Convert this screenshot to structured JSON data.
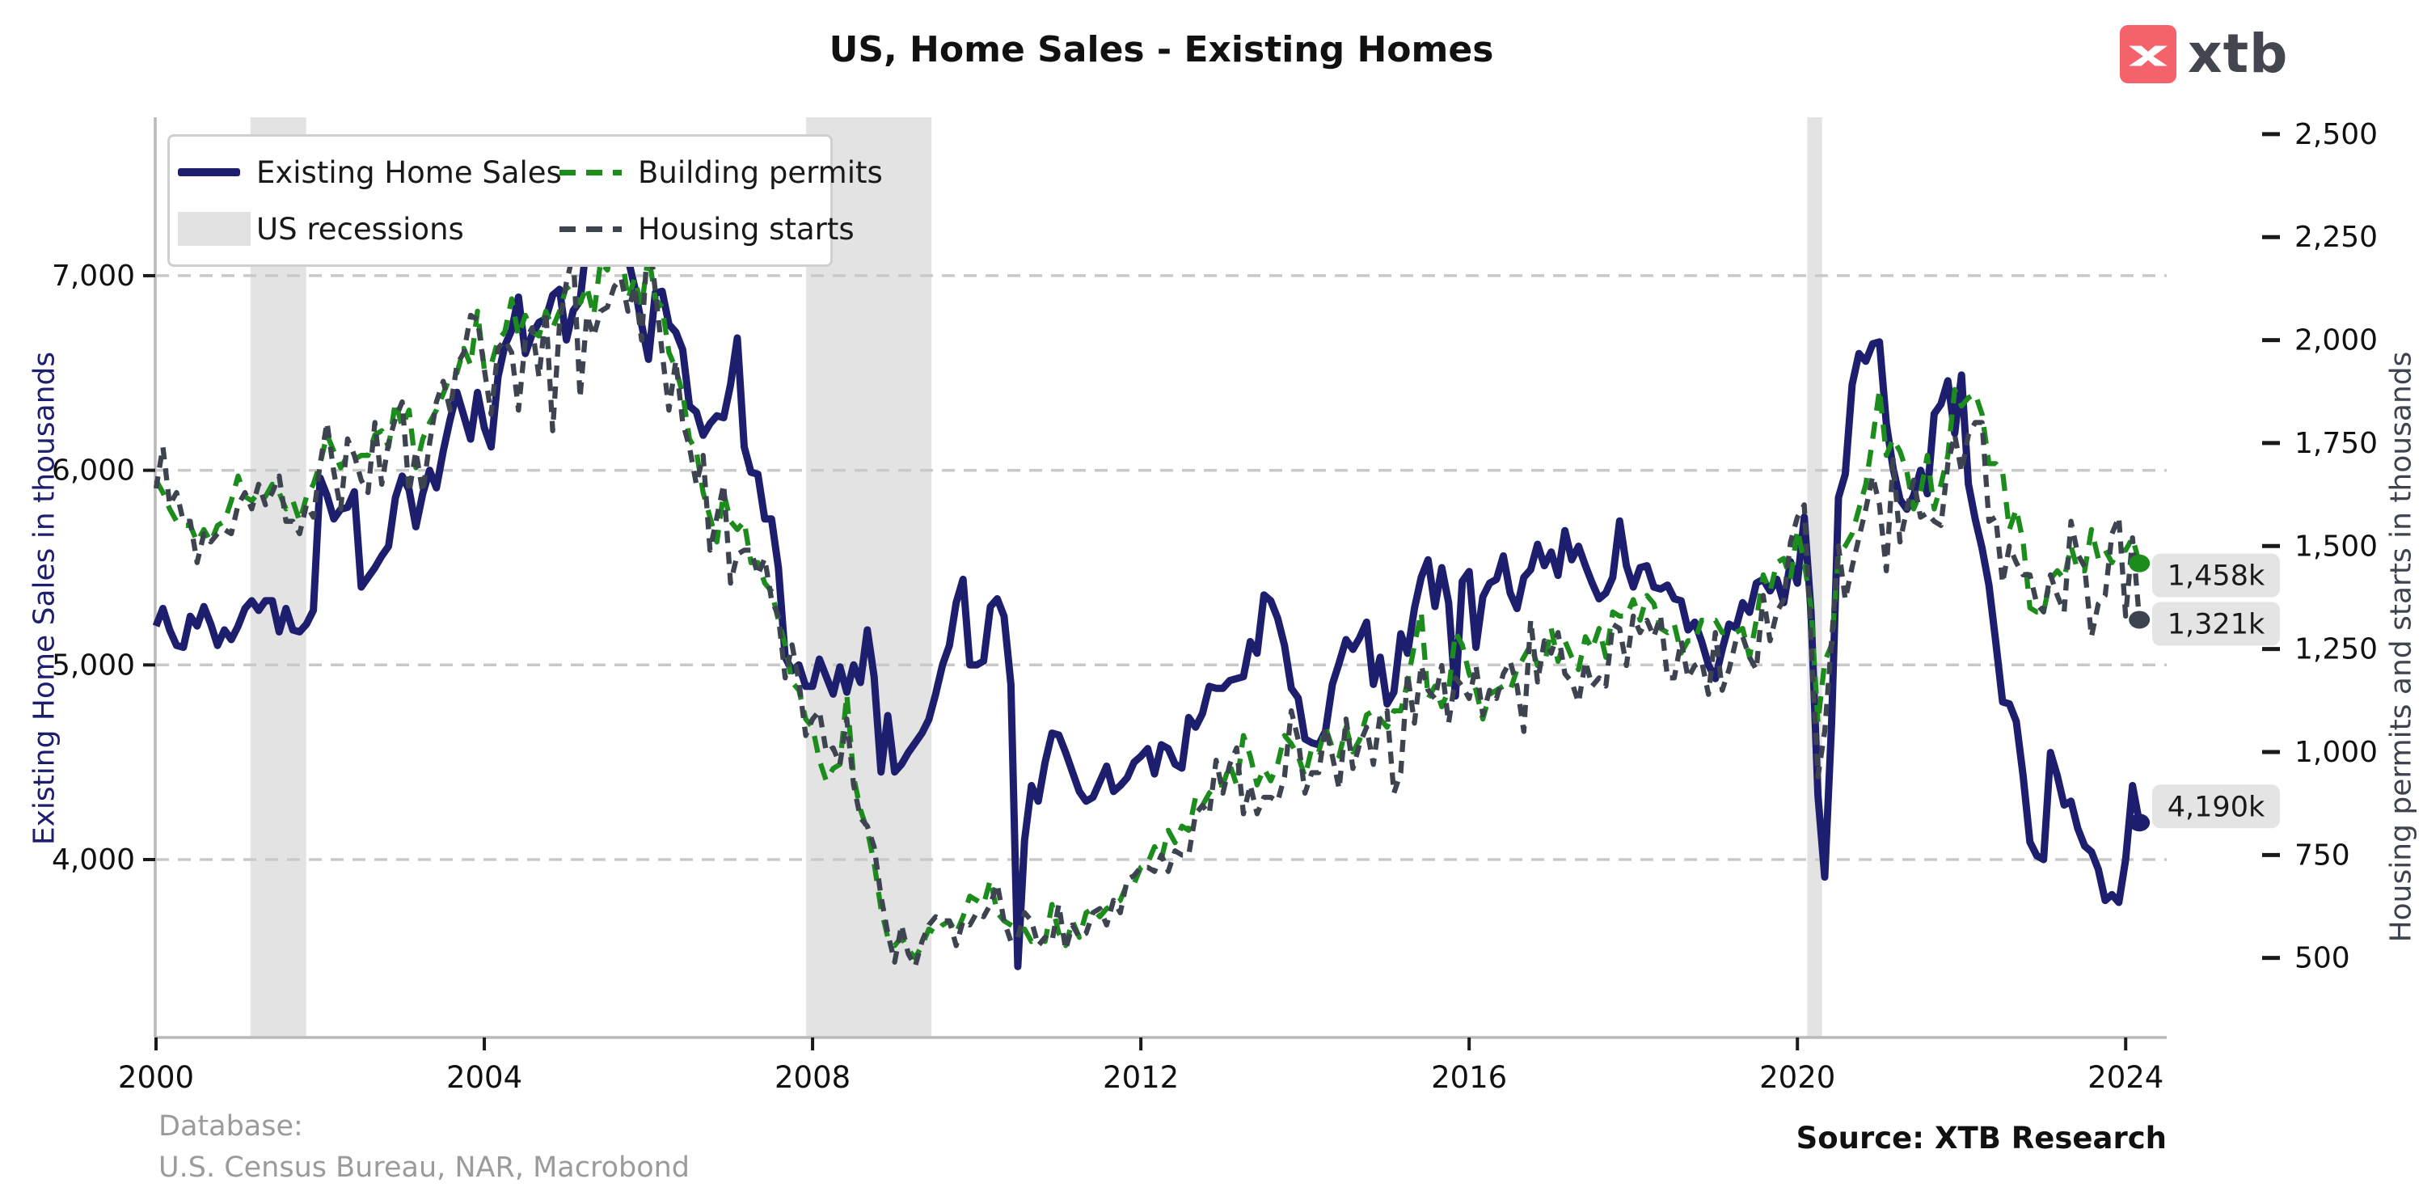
{
  "title": "US, Home Sales - Existing Homes",
  "logo": {
    "text": "xtb",
    "box_color": "#f4626b",
    "text_color": "#43454f"
  },
  "legend": {
    "items": [
      {
        "label": "Existing Home Sales",
        "swatch": "line",
        "color": "#1e1e6e"
      },
      {
        "label": "US recessions",
        "swatch": "patch",
        "color": "#e2e2e2"
      },
      {
        "label": "Building permits",
        "swatch": "dashed",
        "color": "#1c8c1c"
      },
      {
        "label": "Housing starts",
        "swatch": "dashed",
        "color": "#3d4450"
      }
    ]
  },
  "axes": {
    "left": {
      "title": "Existing Home Sales in thousands",
      "color": "#1e1e6e",
      "tick_labels": [
        "4,000",
        "5,000",
        "6,000",
        "7,000"
      ],
      "tick_values": [
        4000,
        5000,
        6000,
        7000
      ]
    },
    "right": {
      "title": "Housing permits and starts in thousands",
      "color": "#3d4450",
      "tick_labels": [
        "500",
        "750",
        "1,000",
        "1,250",
        "1,500",
        "1,750",
        "2,000",
        "2,250",
        "2,500"
      ],
      "tick_values": [
        500,
        750,
        1000,
        1250,
        1500,
        1750,
        2000,
        2250,
        2500
      ]
    },
    "x": {
      "tick_labels": [
        "2000",
        "2004",
        "2008",
        "2012",
        "2016",
        "2020",
        "2024"
      ],
      "tick_values": [
        2000,
        2004,
        2008,
        2012,
        2016,
        2020,
        2024
      ]
    }
  },
  "end_labels": [
    {
      "text": "1,458k",
      "series": 1,
      "dy": 15
    },
    {
      "text": "1,321k",
      "series": 2,
      "dy": 5
    },
    {
      "text": "4,190k",
      "series": 0,
      "dy": -20
    }
  ],
  "footer": {
    "database_label": "Database:",
    "database_value": "U.S. Census Bureau, NAR, Macrobond",
    "source": "Source: XTB Research"
  },
  "chart_data": {
    "type": "line",
    "title": "US, Home Sales - Existing Homes",
    "x_start_year": 2000,
    "x_step_months": 1,
    "x_range": [
      2000,
      2024.5
    ],
    "left_ylim": [
      3086,
      7814
    ],
    "right_ylim": [
      307,
      2541
    ],
    "grid": "horizontal dashed at left-axis ticks",
    "legend_position": "upper left",
    "recession_color": "#e3e3e3",
    "recessions": [
      [
        2001.15,
        2001.83
      ],
      [
        2007.92,
        2009.45
      ],
      [
        2020.12,
        2020.3
      ]
    ],
    "series": [
      {
        "name": "Existing Home Sales",
        "axis": "left",
        "color": "#1e1e6e",
        "style": "solid",
        "width": 9,
        "values": [
          5200,
          5290,
          5180,
          5100,
          5090,
          5250,
          5200,
          5300,
          5210,
          5100,
          5180,
          5130,
          5200,
          5290,
          5330,
          5280,
          5330,
          5330,
          5170,
          5290,
          5180,
          5170,
          5210,
          5280,
          5960,
          5870,
          5750,
          5800,
          5810,
          5890,
          5400,
          5450,
          5500,
          5560,
          5610,
          5860,
          5970,
          5900,
          5710,
          5880,
          6000,
          5910,
          6100,
          6260,
          6400,
          6280,
          6160,
          6400,
          6220,
          6120,
          6480,
          6640,
          6720,
          6890,
          6600,
          6700,
          6760,
          6780,
          6900,
          6930,
          6670,
          6820,
          6870,
          7180,
          7130,
          7250,
          7160,
          7280,
          7250,
          7090,
          6940,
          6750,
          6570,
          6910,
          6920,
          6750,
          6710,
          6620,
          6330,
          6300,
          6180,
          6240,
          6280,
          6270,
          6440,
          6680,
          6120,
          5990,
          5980,
          5750,
          5750,
          5500,
          5040,
          4970,
          5000,
          4890,
          4890,
          5030,
          4940,
          4850,
          4990,
          4860,
          5000,
          4910,
          5180,
          4940,
          4450,
          4740,
          4450,
          4490,
          4550,
          4600,
          4650,
          4720,
          4850,
          5000,
          5100,
          5320,
          5440,
          5000,
          5000,
          5020,
          5300,
          5340,
          5250,
          4900,
          3450,
          4100,
          4380,
          4300,
          4500,
          4650,
          4640,
          4550,
          4450,
          4350,
          4300,
          4320,
          4400,
          4480,
          4350,
          4380,
          4420,
          4500,
          4530,
          4570,
          4440,
          4590,
          4570,
          4490,
          4470,
          4730,
          4680,
          4750,
          4890,
          4880,
          4880,
          4920,
          4930,
          4940,
          5120,
          5060,
          5360,
          5330,
          5240,
          5100,
          4880,
          4830,
          4620,
          4600,
          4590,
          4660,
          4900,
          5010,
          5130,
          5080,
          5140,
          5220,
          4900,
          5040,
          4800,
          4860,
          5160,
          5060,
          5290,
          5450,
          5540,
          5300,
          5500,
          5320,
          4840,
          5430,
          5480,
          5090,
          5350,
          5420,
          5440,
          5560,
          5370,
          5290,
          5450,
          5490,
          5620,
          5510,
          5580,
          5460,
          5690,
          5540,
          5610,
          5510,
          5420,
          5340,
          5370,
          5450,
          5740,
          5510,
          5400,
          5500,
          5510,
          5400,
          5390,
          5410,
          5340,
          5330,
          5180,
          5220,
          5120,
          5000,
          4930,
          5080,
          5210,
          5190,
          5320,
          5270,
          5420,
          5440,
          5380,
          5440,
          5320,
          5530,
          5420,
          5760,
          5270,
          4330,
          3910,
          4700,
          5860,
          5980,
          6440,
          6600,
          6560,
          6650,
          6660,
          6240,
          6010,
          5850,
          5800,
          5870,
          6000,
          5880,
          6290,
          6340,
          6460,
          6190,
          6490,
          5930,
          5750,
          5600,
          5410,
          5120,
          4810,
          4800,
          4710,
          4430,
          4090,
          4020,
          4000,
          4550,
          4430,
          4280,
          4300,
          4160,
          4070,
          4040,
          3950,
          3790,
          3820,
          3780,
          4000,
          4380,
          4190
        ]
      },
      {
        "name": "Building permits",
        "axis": "right",
        "color": "#1c8c1c",
        "style": "dashed",
        "width": 6.3,
        "values": [
          1660,
          1630,
          1590,
          1560,
          1550,
          1550,
          1510,
          1540,
          1510,
          1550,
          1560,
          1610,
          1670,
          1620,
          1610,
          1630,
          1620,
          1650,
          1630,
          1590,
          1610,
          1560,
          1620,
          1650,
          1700,
          1770,
          1730,
          1690,
          1720,
          1710,
          1720,
          1720,
          1770,
          1780,
          1740,
          1850,
          1790,
          1830,
          1690,
          1760,
          1800,
          1830,
          1870,
          1910,
          1920,
          1980,
          1940,
          2070,
          1930,
          1940,
          2000,
          2020,
          2100,
          2010,
          2060,
          2020,
          2010,
          2070,
          2030,
          2070,
          2130,
          2110,
          2090,
          2130,
          2060,
          2190,
          2170,
          2260,
          2220,
          2100,
          2150,
          2080,
          2210,
          2100,
          2080,
          1970,
          1930,
          1870,
          1760,
          1730,
          1630,
          1570,
          1510,
          1630,
          1560,
          1540,
          1560,
          1460,
          1460,
          1410,
          1390,
          1320,
          1260,
          1170,
          1150,
          1080,
          1060,
          980,
          930,
          960,
          970,
          1140,
          940,
          860,
          810,
          730,
          620,
          550,
          530,
          550,
          520,
          500,
          530,
          570,
          560,
          580,
          590,
          560,
          600,
          650,
          640,
          630,
          690,
          610,
          590,
          580,
          570,
          570,
          540,
          550,
          540,
          630,
          560,
          530,
          590,
          550,
          610,
          620,
          600,
          620,
          630,
          640,
          680,
          680,
          720,
          730,
          770,
          740,
          810,
          780,
          820,
          810,
          890,
          870,
          900,
          920,
          920,
          970,
          920,
          1040,
          990,
          920,
          960,
          930,
          970,
          1040,
          1020,
          990,
          940,
          1010,
          1000,
          1060,
          1010,
          990,
          1060,
          1000,
          1030,
          1090,
          1100,
          1080,
          1060,
          1100,
          1100,
          1170,
          1260,
          1340,
          1130,
          1160,
          1110,
          1150,
          1290,
          1260,
          1190,
          1150,
          1080,
          1140,
          1150,
          1160,
          1150,
          1200,
          1230,
          1260,
          1210,
          1210,
          1300,
          1220,
          1270,
          1230,
          1200,
          1280,
          1250,
          1300,
          1230,
          1340,
          1330,
          1330,
          1370,
          1320,
          1380,
          1360,
          1300,
          1290,
          1310,
          1240,
          1270,
          1270,
          1320,
          1320,
          1320,
          1290,
          1290,
          1290,
          1300,
          1230,
          1320,
          1430,
          1390,
          1460,
          1470,
          1420,
          1540,
          1460,
          1350,
          1070,
          1220,
          1260,
          1480,
          1500,
          1530,
          1590,
          1650,
          1760,
          1880,
          1720,
          1760,
          1730,
          1680,
          1590,
          1630,
          1720,
          1590,
          1650,
          1720,
          1880,
          1840,
          1860,
          1870,
          1820,
          1700,
          1700,
          1680,
          1540,
          1590,
          1510,
          1350,
          1340,
          1340,
          1420,
          1440,
          1420,
          1500,
          1440,
          1440,
          1540,
          1470,
          1490,
          1460,
          1490,
          1490,
          1520,
          1458
        ]
      },
      {
        "name": "Housing starts",
        "axis": "right",
        "color": "#3d4450",
        "style": "dashed",
        "width": 6.3,
        "values": [
          1640,
          1740,
          1600,
          1630,
          1560,
          1560,
          1460,
          1530,
          1510,
          1530,
          1540,
          1530,
          1600,
          1630,
          1590,
          1650,
          1600,
          1630,
          1670,
          1560,
          1560,
          1530,
          1600,
          1570,
          1700,
          1800,
          1680,
          1590,
          1760,
          1720,
          1660,
          1630,
          1800,
          1650,
          1750,
          1810,
          1850,
          1630,
          1730,
          1630,
          1750,
          1850,
          1900,
          1830,
          1940,
          1970,
          2060,
          2050,
          1930,
          1820,
          1980,
          2000,
          1970,
          1830,
          2000,
          2030,
          1910,
          2070,
          1780,
          2040,
          2140,
          2210,
          1860,
          2060,
          2010,
          2070,
          2080,
          2130,
          2150,
          2070,
          2130,
          2000,
          2270,
          2120,
          1970,
          1830,
          1950,
          1800,
          1740,
          1650,
          1720,
          1490,
          1570,
          1650,
          1410,
          1480,
          1490,
          1490,
          1430,
          1470,
          1370,
          1330,
          1180,
          1260,
          1170,
          1040,
          1080,
          1100,
          1000,
          1010,
          970,
          1080,
          920,
          840,
          820,
          770,
          650,
          560,
          490,
          580,
          510,
          480,
          540,
          580,
          600,
          590,
          590,
          530,
          590,
          580,
          610,
          600,
          630,
          680,
          590,
          540,
          550,
          610,
          590,
          530,
          550,
          540,
          630,
          520,
          580,
          550,
          560,
          610,
          620,
          580,
          640,
          610,
          690,
          700,
          720,
          720,
          710,
          750,
          710,
          760,
          750,
          750,
          850,
          870,
          850,
          980,
          900,
          970,
          1010,
          850,
          920,
          850,
          890,
          890,
          880,
          940,
          1100,
          1030,
          900,
          950,
          950,
          1060,
          990,
          910,
          1080,
          960,
          1020,
          1060,
          970,
          1090,
          1100,
          900,
          950,
          1190,
          1070,
          1210,
          1150,
          1130,
          1210,
          1070,
          1180,
          1160,
          1130,
          1210,
          1090,
          1150,
          1130,
          1190,
          1220,
          1160,
          1050,
          1320,
          1170,
          1270,
          1240,
          1290,
          1190,
          1170,
          1120,
          1220,
          1160,
          1180,
          1160,
          1310,
          1300,
          1210,
          1330,
          1290,
          1320,
          1280,
          1330,
          1180,
          1180,
          1270,
          1180,
          1210,
          1220,
          1140,
          1290,
          1150,
          1200,
          1270,
          1280,
          1230,
          1200,
          1380,
          1270,
          1340,
          1370,
          1510,
          1570,
          1600,
          1270,
          940,
          1050,
          1270,
          1500,
          1370,
          1450,
          1520,
          1590,
          1670,
          1600,
          1440,
          1710,
          1510,
          1590,
          1660,
          1570,
          1580,
          1560,
          1550,
          1700,
          1770,
          1680,
          1770,
          1800,
          1800,
          1560,
          1570,
          1410,
          1500,
          1460,
          1430,
          1430,
          1360,
          1340,
          1430,
          1380,
          1340,
          1560,
          1480,
          1450,
          1280,
          1360,
          1380,
          1530,
          1570,
          1330,
          1520,
          1321
        ]
      }
    ]
  }
}
